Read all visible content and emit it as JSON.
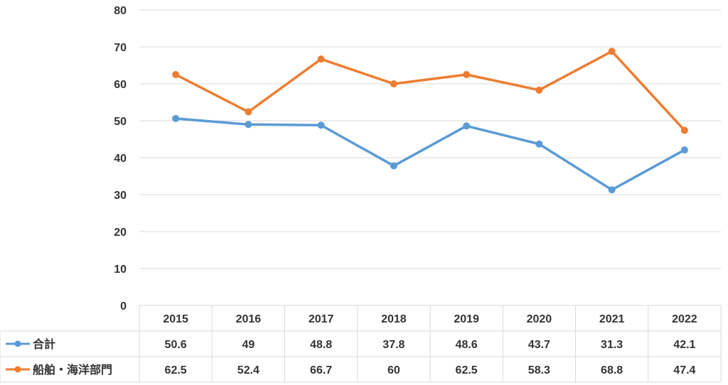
{
  "chart_data": {
    "type": "line",
    "title": "",
    "xlabel": "",
    "ylabel": "",
    "ylim": [
      0,
      80
    ],
    "yticks": [
      "0",
      "10",
      "20",
      "30",
      "40",
      "50",
      "60",
      "70",
      "80"
    ],
    "categories": [
      "2015",
      "2016",
      "2017",
      "2018",
      "2019",
      "2020",
      "2021",
      "2022"
    ],
    "grid": true,
    "legend": "data-table-left",
    "series": [
      {
        "name": "合計",
        "color": "#5b9bd5",
        "values": [
          50.6,
          49,
          48.8,
          37.8,
          48.6,
          43.7,
          31.3,
          42.1
        ],
        "labels": [
          "50.6",
          "49",
          "48.8",
          "37.8",
          "48.6",
          "43.7",
          "31.3",
          "42.1"
        ]
      },
      {
        "name": "船舶・海洋部門",
        "color": "#ed7d31",
        "values": [
          62.5,
          52.4,
          66.7,
          60,
          62.5,
          58.3,
          68.8,
          47.4
        ],
        "labels": [
          "62.5",
          "52.4",
          "66.7",
          "60",
          "62.5",
          "58.3",
          "68.8",
          "47.4"
        ]
      }
    ]
  }
}
